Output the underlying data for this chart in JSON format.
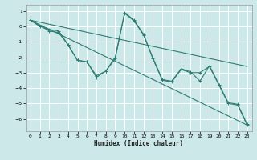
{
  "xlabel": "Humidex (Indice chaleur)",
  "ylabel": "",
  "bg_color": "#cce8e8",
  "grid_color": "#ffffff",
  "line_color": "#2e7d72",
  "xlim": [
    -0.5,
    23.5
  ],
  "ylim": [
    -6.8,
    1.4
  ],
  "yticks": [
    1,
    0,
    -1,
    -2,
    -3,
    -4,
    -5,
    -6
  ],
  "xticks": [
    0,
    1,
    2,
    3,
    4,
    5,
    6,
    7,
    8,
    9,
    10,
    11,
    12,
    13,
    14,
    15,
    16,
    17,
    18,
    19,
    20,
    21,
    22,
    23
  ],
  "lines": [
    {
      "x": [
        0,
        1,
        2,
        3,
        4,
        5,
        6,
        7,
        8,
        9,
        10,
        11,
        12,
        13,
        14,
        15,
        16,
        17,
        18,
        19,
        20,
        21,
        22,
        23
      ],
      "y": [
        0.4,
        0.0,
        -0.2,
        -0.3,
        -1.2,
        -2.2,
        -2.3,
        -3.3,
        -2.9,
        -2.1,
        0.9,
        0.4,
        -0.5,
        -2.1,
        -3.5,
        -3.6,
        -2.8,
        -3.0,
        -3.0,
        -2.6,
        -3.8,
        -5.0,
        -5.1,
        -6.4
      ],
      "markers": true
    },
    {
      "x": [
        0,
        2,
        3,
        4,
        5,
        6,
        7,
        8,
        9,
        10,
        11,
        12,
        13,
        14,
        15,
        16,
        17,
        18,
        19,
        21,
        22,
        23
      ],
      "y": [
        0.4,
        -0.3,
        -0.4,
        -1.2,
        -2.2,
        -2.3,
        -3.2,
        -2.9,
        -2.0,
        0.85,
        0.35,
        -0.55,
        -2.05,
        -3.45,
        -3.55,
        -2.75,
        -2.95,
        -3.55,
        -2.55,
        -4.95,
        -5.05,
        -6.35
      ],
      "markers": true
    },
    {
      "x": [
        0,
        23
      ],
      "y": [
        0.4,
        -6.4
      ],
      "markers": false
    },
    {
      "x": [
        0,
        23
      ],
      "y": [
        0.4,
        -2.6
      ],
      "markers": false
    }
  ]
}
